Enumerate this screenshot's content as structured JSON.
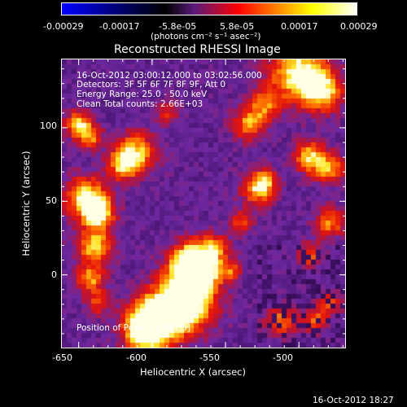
{
  "colorbar": {
    "tick_labels": [
      "-0.00029",
      "-0.00017",
      "-5.8e-05",
      "5.8e-05",
      "0.00017",
      "0.00029"
    ],
    "units": "(photons cm⁻² s⁻¹ asec⁻²)",
    "colors": [
      "#0000ff",
      "#000000",
      "#ff0000",
      "#ffff00",
      "#ffffff"
    ]
  },
  "plot": {
    "title": "Reconstructed RHESSI Image",
    "info_lines": [
      "16-Oct-2012 03:00:12.000 to 03:02:56.000",
      "Detectors: 3F 5F 6F 7F 8F 9F, Att 0",
      "Energy Range: 25.0 - 50.0 keV",
      "Clean    Total counts: 2.66E+03"
    ],
    "peak_label": "Position of Peak = [-561,5]",
    "xlabel": "Heliocentric X (arcsec)",
    "ylabel": "Heliocentric Y (arcsec)",
    "x_ticks": [
      "-650",
      "-600",
      "-550",
      "-500"
    ],
    "y_ticks": [
      "100",
      "50",
      "0"
    ],
    "x_range": [
      -662,
      -468
    ],
    "y_range": [
      -50,
      147
    ],
    "peak": [
      -561,
      5
    ]
  },
  "footer": {
    "timestamp": "16-Oct-2012 18:27"
  }
}
